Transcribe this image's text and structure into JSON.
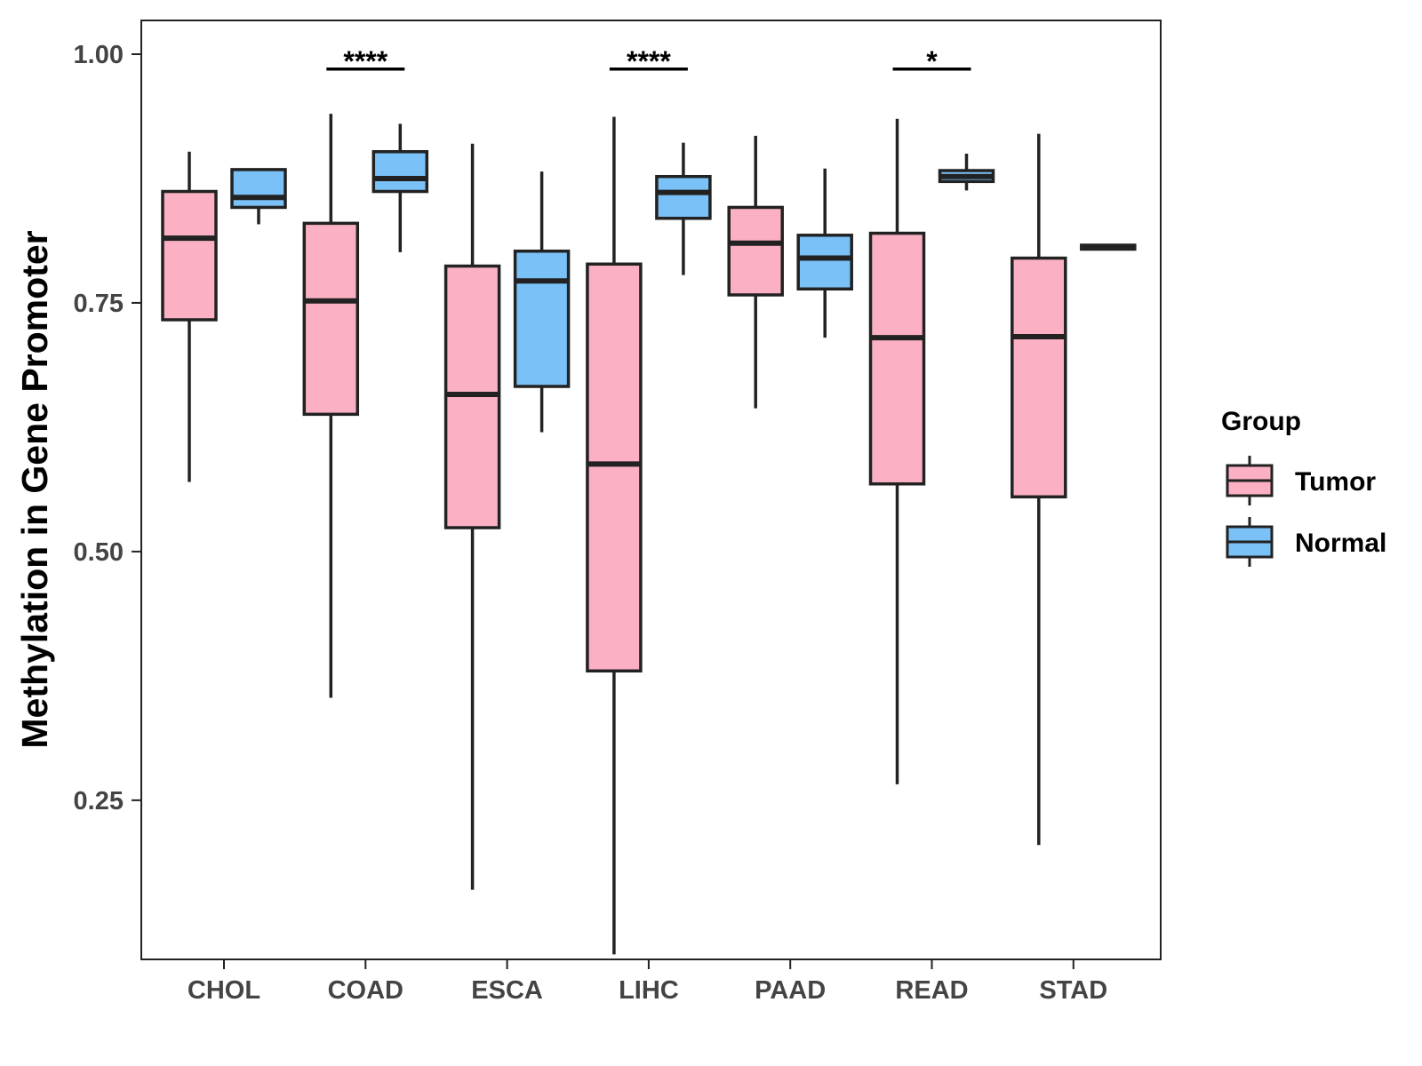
{
  "chart_data": {
    "type": "boxplot",
    "title": "",
    "xlabel": "",
    "ylabel": "Methylation in Gene Promoter",
    "ylim": [
      0.09,
      1.04
    ],
    "yticks": [
      0.25,
      0.5,
      0.75,
      1.0
    ],
    "ytick_labels": [
      "0.25",
      "0.50",
      "0.75",
      "1.00"
    ],
    "categories": [
      "CHOL",
      "COAD",
      "ESCA",
      "LIHC",
      "PAAD",
      "READ",
      "STAD"
    ],
    "legend": {
      "title": "Group",
      "position": "right",
      "entries": [
        {
          "name": "Tumor",
          "color": "#FBB0C3"
        },
        {
          "name": "Normal",
          "color": "#79C1F7"
        }
      ]
    },
    "series": [
      {
        "name": "Tumor",
        "color": "#FBB0C3",
        "boxes": [
          {
            "min": 0.57,
            "q1": 0.733,
            "median": 0.815,
            "q3": 0.862,
            "max": 0.902
          },
          {
            "min": 0.353,
            "q1": 0.638,
            "median": 0.752,
            "q3": 0.83,
            "max": 0.94
          },
          {
            "min": 0.16,
            "q1": 0.524,
            "median": 0.658,
            "q3": 0.787,
            "max": 0.91
          },
          {
            "min": 0.095,
            "q1": 0.38,
            "median": 0.588,
            "q3": 0.789,
            "max": 0.937
          },
          {
            "min": 0.644,
            "q1": 0.758,
            "median": 0.81,
            "q3": 0.846,
            "max": 0.918
          },
          {
            "min": 0.266,
            "q1": 0.568,
            "median": 0.715,
            "q3": 0.82,
            "max": 0.935
          },
          {
            "min": 0.205,
            "q1": 0.555,
            "median": 0.716,
            "q3": 0.795,
            "max": 0.92
          }
        ]
      },
      {
        "name": "Normal",
        "color": "#79C1F7",
        "boxes": [
          {
            "min": 0.829,
            "q1": 0.846,
            "median": 0.856,
            "q3": 0.884,
            "max": 0.885
          },
          {
            "min": 0.801,
            "q1": 0.862,
            "median": 0.875,
            "q3": 0.902,
            "max": 0.93
          },
          {
            "min": 0.62,
            "q1": 0.666,
            "median": 0.772,
            "q3": 0.802,
            "max": 0.882
          },
          {
            "min": 0.778,
            "q1": 0.835,
            "median": 0.861,
            "q3": 0.877,
            "max": 0.911
          },
          {
            "min": 0.715,
            "q1": 0.764,
            "median": 0.795,
            "q3": 0.818,
            "max": 0.885
          },
          {
            "min": 0.863,
            "q1": 0.872,
            "median": 0.877,
            "q3": 0.883,
            "max": 0.9
          },
          {
            "min": 0.804,
            "q1": 0.804,
            "median": 0.806,
            "q3": 0.808,
            "max": 0.808
          }
        ]
      }
    ],
    "significance": [
      {
        "category": "COAD",
        "label": "****",
        "y": 0.985
      },
      {
        "category": "LIHC",
        "label": "****",
        "y": 0.985
      },
      {
        "category": "READ",
        "label": "*",
        "y": 0.985
      }
    ]
  }
}
